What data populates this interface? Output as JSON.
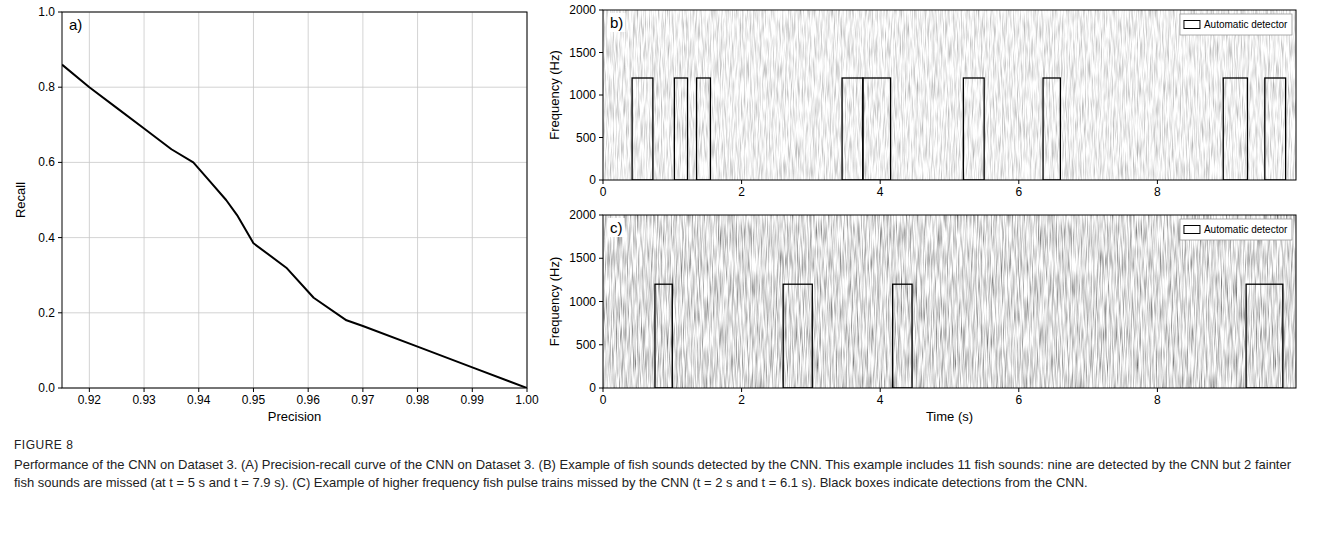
{
  "chart_data": [
    {
      "type": "line",
      "panel_label": "a)",
      "xlabel": "Precision",
      "ylabel": "Recall",
      "x": [
        0.915,
        0.92,
        0.925,
        0.93,
        0.935,
        0.939,
        0.942,
        0.945,
        0.947,
        0.95,
        0.956,
        0.961,
        0.967,
        0.97,
        0.98,
        0.99,
        1.0
      ],
      "values": [
        0.86,
        0.8,
        0.745,
        0.69,
        0.635,
        0.6,
        0.55,
        0.5,
        0.46,
        0.385,
        0.32,
        0.24,
        0.18,
        0.165,
        0.11,
        0.055,
        0.0
      ],
      "color": "#000000",
      "xlim": [
        0.915,
        1.0
      ],
      "xticks": [
        0.92,
        0.93,
        0.94,
        0.95,
        0.96,
        0.97,
        0.98,
        0.99,
        {
          "value": 1.0,
          "label": "1.00"
        }
      ],
      "ylim": [
        0.0,
        1.0
      ],
      "yticks": [
        {
          "value": 0.0,
          "label": "0.0"
        },
        0.2,
        0.4,
        0.6,
        0.8,
        {
          "value": 1.0,
          "label": "1.0"
        }
      ],
      "grid": true
    },
    {
      "type": "spectrogram",
      "panel_label": "b)",
      "ylabel": "Frequency (Hz)",
      "xlim": [
        0,
        10
      ],
      "xticks": [
        0,
        2,
        4,
        6,
        8
      ],
      "ylim": [
        0,
        2000
      ],
      "yticks": [
        0,
        500,
        1000,
        1500,
        2000
      ],
      "legend": "upper right",
      "series": [
        {
          "name": "Automatic detector",
          "color": "#000000",
          "x_start": [
            0.42,
            1.03,
            1.35,
            3.45,
            3.75,
            5.2,
            6.35,
            8.95,
            9.55
          ],
          "x_end": [
            0.72,
            1.22,
            1.55,
            3.75,
            4.15,
            5.5,
            6.6,
            9.3,
            9.85
          ],
          "y_low": [
            0,
            0,
            0,
            0,
            0,
            0,
            0,
            0,
            0
          ],
          "y_high": [
            1200,
            1200,
            1200,
            1200,
            1200,
            1200,
            1200,
            1200,
            1200
          ]
        }
      ]
    },
    {
      "type": "spectrogram",
      "panel_label": "c)",
      "xlabel": "Time (s)",
      "ylabel": "Frequency (Hz)",
      "xlim": [
        0,
        10
      ],
      "xticks": [
        0,
        2,
        4,
        6,
        8
      ],
      "ylim": [
        0,
        2000
      ],
      "yticks": [
        0,
        500,
        1000,
        1500,
        2000
      ],
      "legend": "upper right",
      "series": [
        {
          "name": "Automatic detector",
          "color": "#000000",
          "x_start": [
            0.75,
            2.6,
            4.18,
            9.28
          ],
          "x_end": [
            1.0,
            3.02,
            4.46,
            9.81
          ],
          "y_low": [
            0,
            0,
            0,
            0
          ],
          "y_high": [
            1200,
            1200,
            1200,
            1200
          ]
        }
      ]
    }
  ],
  "figure_caption": {
    "label": "FIGURE 8",
    "text": "Performance of the CNN on Dataset 3. (A) Precision-recall curve of the CNN on Dataset 3. (B) Example of fish sounds detected by the CNN. This example includes 11 fish sounds: nine are detected by the CNN but 2 fainter fish sounds are missed (at t = 5 s and t = 7.9 s). (C) Example of higher frequency fish pulse trains missed by the CNN (t = 2 s and t = 6.1 s). Black boxes indicate detections from the CNN."
  }
}
